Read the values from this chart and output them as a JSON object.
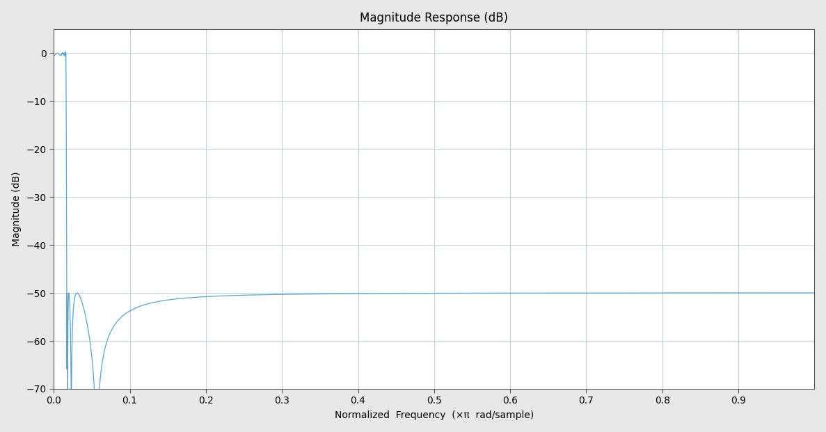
{
  "title": "Magnitude Response (dB)",
  "xlabel": "Normalized  Frequency  (×π  rad/sample)",
  "ylabel": "Magnitude (dB)",
  "xlim": [
    0,
    1.0
  ],
  "ylim": [
    -70,
    5
  ],
  "xticks": [
    0.0,
    0.1,
    0.2,
    0.3,
    0.4,
    0.5,
    0.6,
    0.7,
    0.8,
    0.9
  ],
  "yticks": [
    0,
    -10,
    -20,
    -30,
    -40,
    -50,
    -60,
    -70
  ],
  "line_color": "#5ba3c9",
  "bg_color": "#e8e8e8",
  "axes_bg_color": "#ffffff",
  "grid_color": "#c0d0e0",
  "title_fontsize": 12,
  "label_fontsize": 10
}
